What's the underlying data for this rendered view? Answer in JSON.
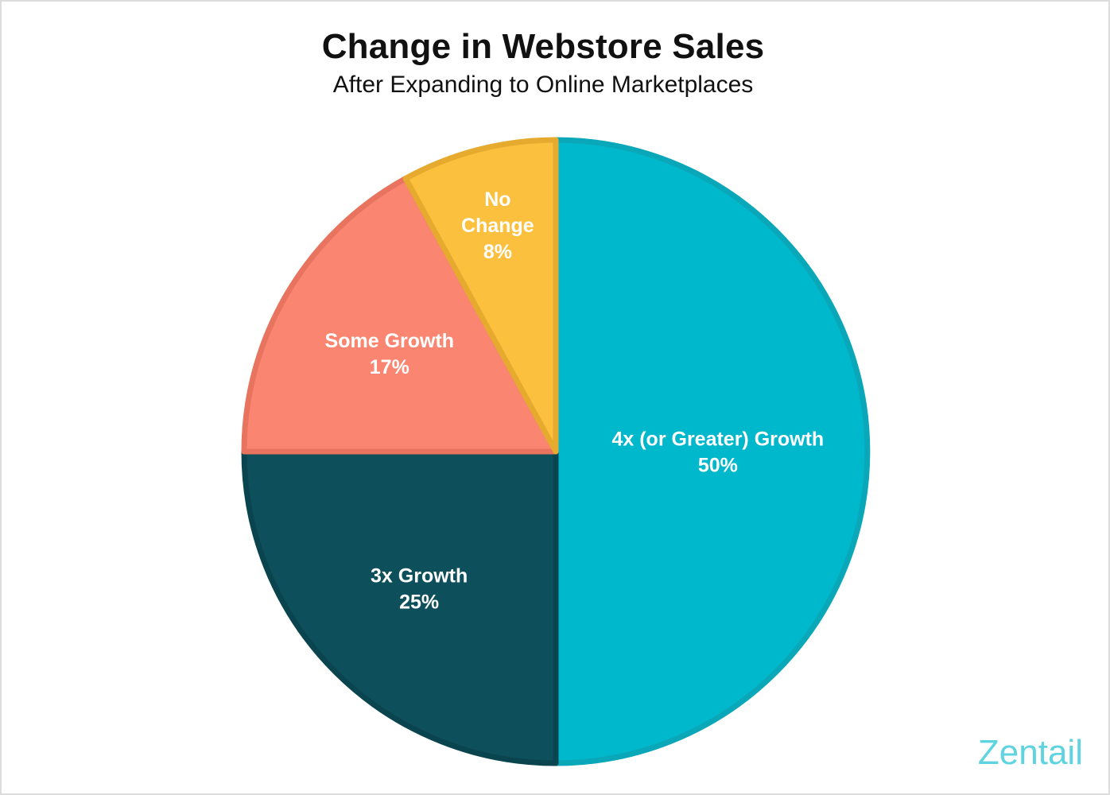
{
  "chart_data": {
    "type": "pie",
    "title": "Change in Webstore Sales",
    "subtitle": "After Expanding to Online Marketplaces",
    "start": "12 o'clock",
    "direction": "clockwise",
    "slices": [
      {
        "label": "4x (or Greater) Growth",
        "value": 50,
        "value_label": "50%",
        "color": "#00b8cc",
        "stroke": "#0aa7b9"
      },
      {
        "label": "3x Growth",
        "value": 25,
        "value_label": "25%",
        "color": "#0e4f5c",
        "stroke": "#0a444f"
      },
      {
        "label": "Some Growth",
        "value": 17,
        "value_label": "17%",
        "color": "#fa8672",
        "stroke": "#e8735f"
      },
      {
        "label": "No Change",
        "value": 8,
        "value_label": "8%",
        "color": "#fbc03e",
        "stroke": "#e6aa2e",
        "label_lines": [
          "No",
          "Change"
        ]
      }
    ]
  },
  "brand": {
    "text": "Zentail",
    "color": "#5fd3e0"
  }
}
